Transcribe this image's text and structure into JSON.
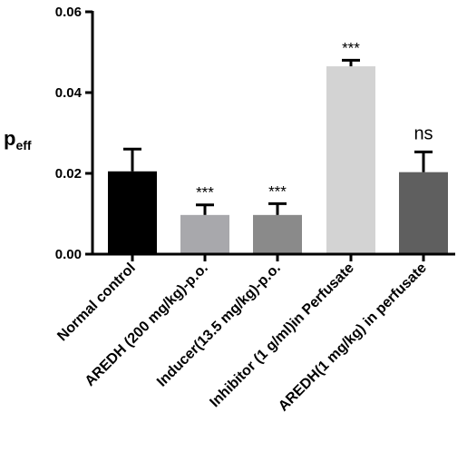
{
  "chart_data": {
    "type": "bar",
    "ylabel": {
      "main": "p",
      "sub": "eff"
    },
    "xlabel": "",
    "ylim": [
      0,
      0.06
    ],
    "yticks": [
      "0.00",
      "0.02",
      "0.04",
      "0.06"
    ],
    "categories": [
      "Normal control",
      "AREDH (200 mg/kg)-p.o.",
      "Inducer(13.5 mg/kg)-p.o.",
      "Inhibitor (1 g/ml)in Perfusate",
      "AREDH(1 mg/kg) in perfusate"
    ],
    "values": [
      0.0205,
      0.0097,
      0.0097,
      0.0465,
      0.0203
    ],
    "errors": [
      0.0055,
      0.0025,
      0.0028,
      0.0015,
      0.005
    ],
    "annotations": [
      "",
      "***",
      "***",
      "***",
      "ns"
    ],
    "colors": [
      "#000000",
      "#a8a8ac",
      "#8a8a8a",
      "#d3d3d3",
      "#5f5f5f"
    ]
  }
}
